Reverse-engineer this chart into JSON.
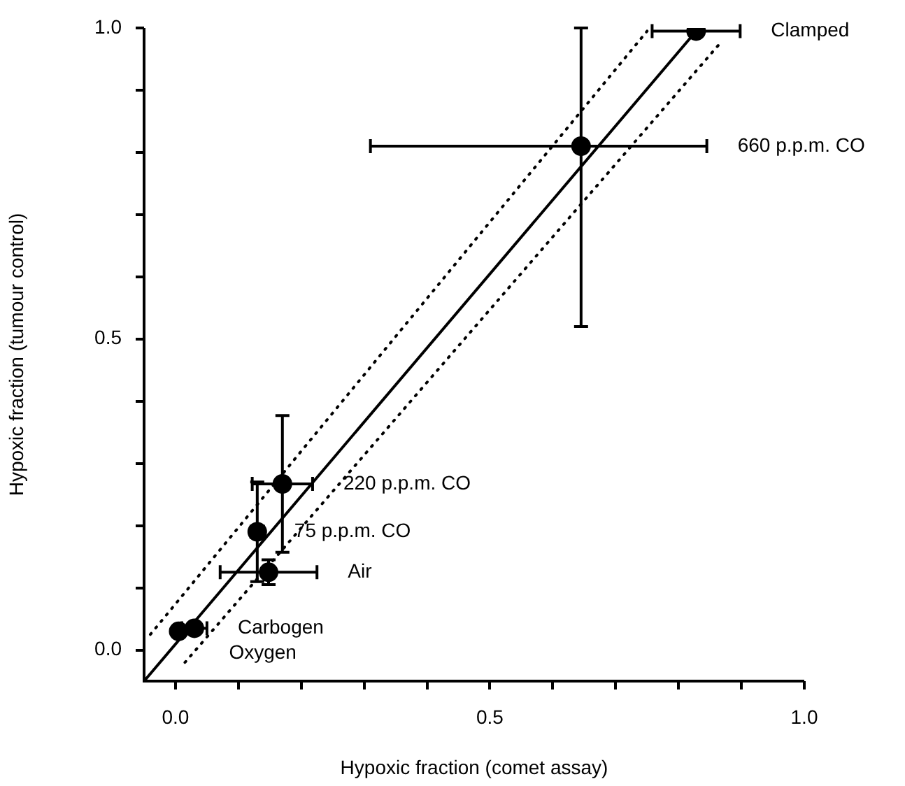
{
  "chart_data": {
    "type": "scatter",
    "xlabel": "Hypoxic fraction (comet assay)",
    "ylabel": "Hypoxic fraction (tumour control)",
    "xlim": [
      -0.05,
      1.0
    ],
    "ylim": [
      -0.05,
      1.0
    ],
    "xticks": [
      {
        "value": 0,
        "label": "0.0"
      },
      {
        "value": 0.1,
        "label": null
      },
      {
        "value": 0.2,
        "label": null
      },
      {
        "value": 0.3,
        "label": null
      },
      {
        "value": 0.4,
        "label": null
      },
      {
        "value": 0.5,
        "label": "0.5"
      },
      {
        "value": 0.6,
        "label": null
      },
      {
        "value": 0.7,
        "label": null
      },
      {
        "value": 0.8,
        "label": null
      },
      {
        "value": 0.9,
        "label": null
      },
      {
        "value": 1.0,
        "label": "1.0"
      }
    ],
    "yticks": [
      {
        "value": 0,
        "label": "0.0"
      },
      {
        "value": 0.1,
        "label": null
      },
      {
        "value": 0.2,
        "label": null
      },
      {
        "value": 0.3,
        "label": null
      },
      {
        "value": 0.4,
        "label": null
      },
      {
        "value": 0.5,
        "label": "0.5"
      },
      {
        "value": 0.6,
        "label": null
      },
      {
        "value": 0.7,
        "label": null
      },
      {
        "value": 0.8,
        "label": null
      },
      {
        "value": 0.9,
        "label": null
      },
      {
        "value": 1.0,
        "label": "1.0"
      }
    ],
    "grid": false,
    "legend": false,
    "series": [
      {
        "type": "scatter",
        "color": "#000000",
        "marker": "circle",
        "x": [
          0.005,
          0.03,
          0.148,
          0.13,
          0.17,
          0.645,
          0.828
        ],
        "values": [
          0.03,
          0.035,
          0.125,
          0.19,
          0.267,
          0.81,
          0.995
        ],
        "errors": [
          null,
          null,
          0.02,
          0.08,
          0.11,
          [
            0.52,
            1.0
          ],
          null
        ],
        "xerrors": [
          null,
          0.02,
          0.077,
          0.01,
          0.048,
          [
            0.31,
            0.845
          ],
          0.07
        ]
      },
      {
        "type": "line",
        "color": "#000000",
        "marker": "none",
        "line_style": "solid",
        "x": [
          -0.05,
          0.828
        ],
        "values": [
          -0.05,
          0.995
        ]
      },
      {
        "type": "line",
        "color": "#000000",
        "marker": "none",
        "line_style": "dotted",
        "x": [
          -0.04,
          0.75
        ],
        "values": [
          0.025,
          0.995
        ]
      },
      {
        "type": "line",
        "color": "#000000",
        "marker": "none",
        "line_style": "dotted",
        "x": [
          0.015,
          0.87
        ],
        "values": [
          -0.02,
          0.98
        ]
      }
    ],
    "annotations": [
      "Oxygen",
      "Carbogen",
      "Air",
      "75 p.p.m. CO",
      "220 p.p.m. CO",
      "660 p.p.m. CO",
      "Clamped"
    ]
  }
}
